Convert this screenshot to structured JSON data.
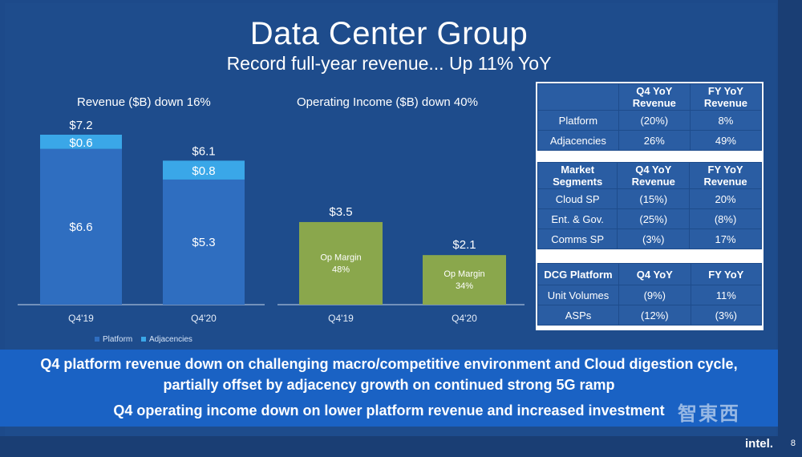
{
  "header": {
    "title": "Data Center Group",
    "subtitle": "Record full-year revenue... Up 11% YoY"
  },
  "colors": {
    "platform": "#2f6ec0",
    "adjacencies": "#3aa7e8",
    "op_income": "#8aa74c",
    "background": "#1e4c8c"
  },
  "chart_data": [
    {
      "type": "bar",
      "title": "Revenue ($B) down 16%",
      "categories": [
        "Q4'19",
        "Q4'20"
      ],
      "series": [
        {
          "name": "Platform",
          "values": [
            6.6,
            5.3
          ],
          "labels": [
            "$6.6",
            "$5.3"
          ]
        },
        {
          "name": "Adjacencies",
          "values": [
            0.6,
            0.8
          ],
          "labels": [
            "$0.6",
            "$0.8"
          ]
        }
      ],
      "totals": [
        "$7.2",
        "$6.1"
      ],
      "legend": [
        "Platform",
        "Adjacencies"
      ],
      "ylim": [
        0,
        7.2
      ]
    },
    {
      "type": "bar",
      "title": "Operating Income ($B) down 40%",
      "categories": [
        "Q4'19",
        "Q4'20"
      ],
      "values": [
        3.5,
        2.1
      ],
      "value_labels": [
        "$3.5",
        "$2.1"
      ],
      "margin_caption": "Op Margin",
      "margins": [
        "48%",
        "34%"
      ],
      "ylim": [
        0,
        7.2
      ]
    }
  ],
  "tables": {
    "platform": {
      "headers": [
        "",
        "Q4 YoY Revenue",
        "FY YoY Revenue"
      ],
      "rows": [
        [
          "Platform",
          "(20%)",
          "8%"
        ],
        [
          "Adjacencies",
          "26%",
          "49%"
        ]
      ]
    },
    "segments": {
      "headers": [
        "Market Segments",
        "Q4 YoY Revenue",
        "FY YoY Revenue"
      ],
      "rows": [
        [
          "Cloud SP",
          "(15%)",
          "20%"
        ],
        [
          "Ent. & Gov.",
          "(25%)",
          "(8%)"
        ],
        [
          "Comms SP",
          "(3%)",
          "17%"
        ]
      ]
    },
    "dcg": {
      "headers": [
        "DCG Platform",
        "Q4 YoY",
        "FY YoY"
      ],
      "rows": [
        [
          "Unit Volumes",
          "(9%)",
          "11%"
        ],
        [
          "ASPs",
          "(12%)",
          "(3%)"
        ]
      ]
    }
  },
  "banner": {
    "line1": "Q4 platform revenue down on challenging macro/competitive environment and Cloud digestion cycle,",
    "line2": "partially offset by adjacency growth on continued strong 5G ramp",
    "line3": "Q4 operating income down on lower platform revenue and increased investment"
  },
  "footer": {
    "brand": "intel.",
    "page": "8",
    "watermark": "智東西"
  }
}
